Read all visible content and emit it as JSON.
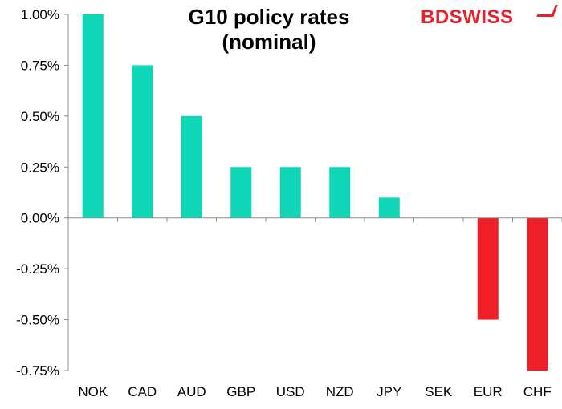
{
  "chart_data": {
    "type": "bar",
    "title": "G10 policy rates (nominal)",
    "title_lines": [
      "G10 policy rates",
      "(nominal)"
    ],
    "categories": [
      "NOK",
      "CAD",
      "AUD",
      "GBP",
      "USD",
      "NZD",
      "JPY",
      "SEK",
      "EUR",
      "CHF"
    ],
    "values": [
      1.0,
      0.75,
      0.5,
      0.25,
      0.25,
      0.25,
      0.1,
      0.0,
      -0.5,
      -0.75
    ],
    "ylim": [
      -0.75,
      1.0
    ],
    "yticks": [
      1.0,
      0.75,
      0.5,
      0.25,
      0.0,
      -0.25,
      -0.5,
      -0.75
    ],
    "ytick_labels": [
      "1.00%",
      "0.75%",
      "0.50%",
      "0.25%",
      "0.00%",
      "-0.25%",
      "-0.50%",
      "-0.75%"
    ],
    "xlabel": "",
    "ylabel": "",
    "grid": false,
    "colors": {
      "positive": "#0fd6b6",
      "negative": "#ee1f26"
    }
  },
  "logo": {
    "part1": "BD",
    "part2": "SWISS"
  }
}
